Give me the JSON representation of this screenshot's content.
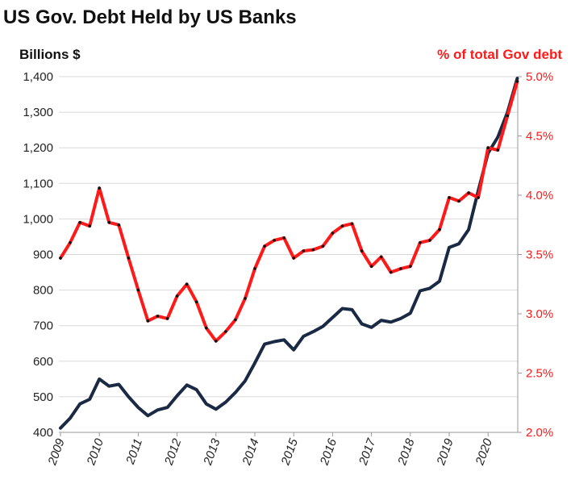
{
  "chart_data": {
    "type": "line",
    "title": "US Gov. Debt Held by US Banks",
    "ylabel_left": "Billions $",
    "ylabel_right": "% of total Gov debt",
    "x_ticks": [
      "2009",
      "2010",
      "2011",
      "2012",
      "2013",
      "2014",
      "2015",
      "2016",
      "2017",
      "2018",
      "2019",
      "2020"
    ],
    "ylim_left": [
      400,
      1400
    ],
    "ylim_right": [
      2.0,
      5.0
    ],
    "y_ticks_left": [
      "400",
      "500",
      "600",
      "700",
      "800",
      "900",
      "1,000",
      "1,100",
      "1,200",
      "1,300",
      "1,400"
    ],
    "y_ticks_right": [
      "2.0%",
      "2.5%",
      "3.0%",
      "3.5%",
      "4.0%",
      "4.5%",
      "5.0%"
    ],
    "grid": true,
    "colors": {
      "billions": "#1b2a44",
      "percent": "#ff1a1a",
      "points": "#111111"
    },
    "series": [
      {
        "axis": "left",
        "x": [
          2009.0,
          2009.25,
          2009.5,
          2009.75,
          2010.0,
          2010.25,
          2010.5,
          2010.75,
          2011.0,
          2011.25,
          2011.5,
          2011.75,
          2012.0,
          2012.25,
          2012.5,
          2012.75,
          2013.0,
          2013.25,
          2013.5,
          2013.75,
          2014.0,
          2014.25,
          2014.5,
          2014.75,
          2015.0,
          2015.25,
          2015.5,
          2015.75,
          2016.0,
          2016.25,
          2016.5,
          2016.75,
          2017.0,
          2017.25,
          2017.5,
          2017.75,
          2018.0,
          2018.25,
          2018.5,
          2018.75,
          2019.0,
          2019.25,
          2019.5,
          2019.75,
          2020.0,
          2020.25,
          2020.5,
          2020.75
        ],
        "values": [
          412,
          440,
          480,
          493,
          550,
          530,
          535,
          500,
          470,
          447,
          463,
          470,
          503,
          533,
          520,
          480,
          465,
          485,
          512,
          545,
          595,
          648,
          655,
          660,
          632,
          670,
          683,
          698,
          723,
          748,
          745,
          705,
          695,
          715,
          710,
          720,
          735,
          798,
          805,
          825,
          920,
          930,
          970,
          1080,
          1185,
          1230,
          1300,
          1395
        ]
      },
      {
        "axis": "right",
        "x": [
          2009.0,
          2009.25,
          2009.5,
          2009.75,
          2010.0,
          2010.25,
          2010.5,
          2010.75,
          2011.0,
          2011.25,
          2011.5,
          2011.75,
          2012.0,
          2012.25,
          2012.5,
          2012.75,
          2013.0,
          2013.25,
          2013.5,
          2013.75,
          2014.0,
          2014.25,
          2014.5,
          2014.75,
          2015.0,
          2015.25,
          2015.5,
          2015.75,
          2016.0,
          2016.25,
          2016.5,
          2016.75,
          2017.0,
          2017.25,
          2017.5,
          2017.75,
          2018.0,
          2018.25,
          2018.5,
          2018.75,
          2019.0,
          2019.25,
          2019.5,
          2019.75,
          2020.0,
          2020.25,
          2020.5,
          2020.75
        ],
        "values": [
          3.47,
          3.6,
          3.77,
          3.74,
          4.06,
          3.77,
          3.75,
          3.47,
          3.2,
          2.94,
          2.98,
          2.96,
          3.15,
          3.25,
          3.1,
          2.88,
          2.77,
          2.85,
          2.95,
          3.13,
          3.38,
          3.57,
          3.62,
          3.64,
          3.47,
          3.53,
          3.54,
          3.57,
          3.68,
          3.74,
          3.76,
          3.53,
          3.4,
          3.48,
          3.35,
          3.38,
          3.4,
          3.6,
          3.62,
          3.71,
          3.98,
          3.95,
          4.02,
          3.98,
          4.4,
          4.38,
          4.67,
          4.96
        ]
      }
    ]
  }
}
